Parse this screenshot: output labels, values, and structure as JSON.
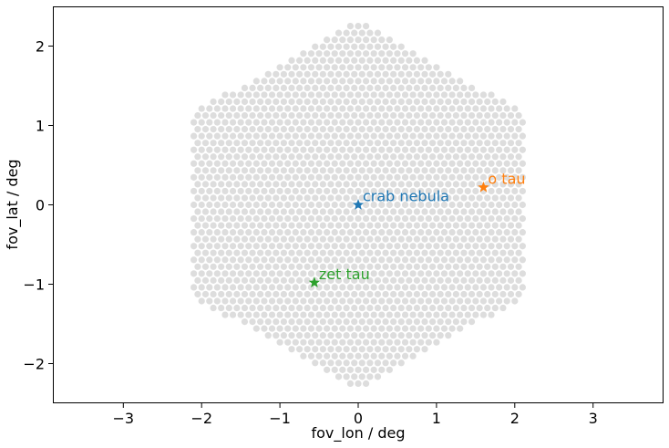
{
  "chart_data": {
    "type": "scatter",
    "xlabel": "fov_lon / deg",
    "ylabel": "fov_lat / deg",
    "xlim": [
      -3.9,
      3.9
    ],
    "ylim": [
      -2.5,
      2.5
    ],
    "xticks": [
      -3,
      -2,
      -1,
      0,
      1,
      2,
      3
    ],
    "yticks": [
      -2,
      -1,
      0,
      1,
      2
    ],
    "grid": false,
    "camera_pixels": {
      "shape": "hexagonal grid",
      "color": "#dddddd",
      "spacing_deg": 0.1,
      "lon_extent": [
        -2.1,
        2.1
      ],
      "lat_extent": [
        -2.3,
        2.3
      ]
    },
    "points": [
      {
        "name": "crab nebula",
        "x": 0.0,
        "y": 0.0,
        "color": "#1f77b4",
        "marker": "star"
      },
      {
        "name": "o tau",
        "x": 1.6,
        "y": 0.22,
        "color": "#ff7f0e",
        "marker": "star"
      },
      {
        "name": "zet tau",
        "x": -0.56,
        "y": -0.98,
        "color": "#2ca02c",
        "marker": "star"
      }
    ]
  }
}
